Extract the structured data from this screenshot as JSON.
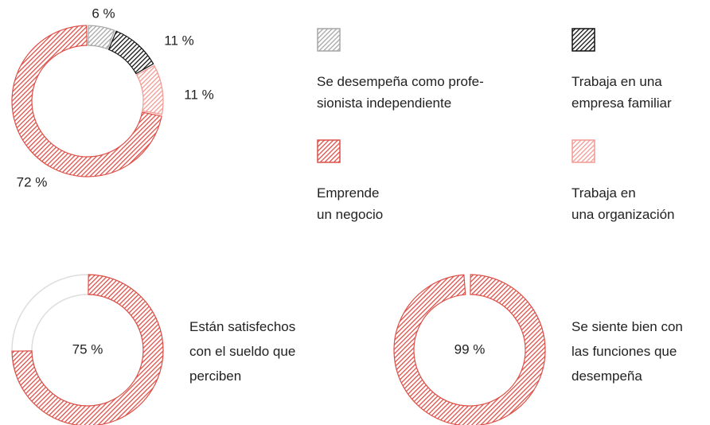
{
  "chart_data": [
    {
      "type": "donut",
      "categories": [
        "Se desempeña como profe-\nsionista independiente",
        "Trabaja en una\nempresa familiar",
        "Trabaja en\nuna organización",
        "Emprende\nun negocio"
      ],
      "values": [
        6,
        11,
        11,
        72
      ],
      "value_labels": [
        "6 %",
        "11 %",
        "11 %",
        "72 %"
      ],
      "colors": [
        "#a6a6a6",
        "#111111",
        "#f29a94",
        "#dd5048"
      ]
    },
    {
      "type": "donut",
      "values": [
        75
      ],
      "value_labels": [
        "75 %"
      ],
      "colors": [
        "#dd5048"
      ],
      "track_color": "#dddddd",
      "caption": "Están satisfechos\ncon el sueldo que\nperciben"
    },
    {
      "type": "donut",
      "values": [
        99
      ],
      "value_labels": [
        "99 %"
      ],
      "colors": [
        "#dd5048"
      ],
      "caption": "Se siente bien con\nlas funciones que\ndesempeña"
    }
  ]
}
